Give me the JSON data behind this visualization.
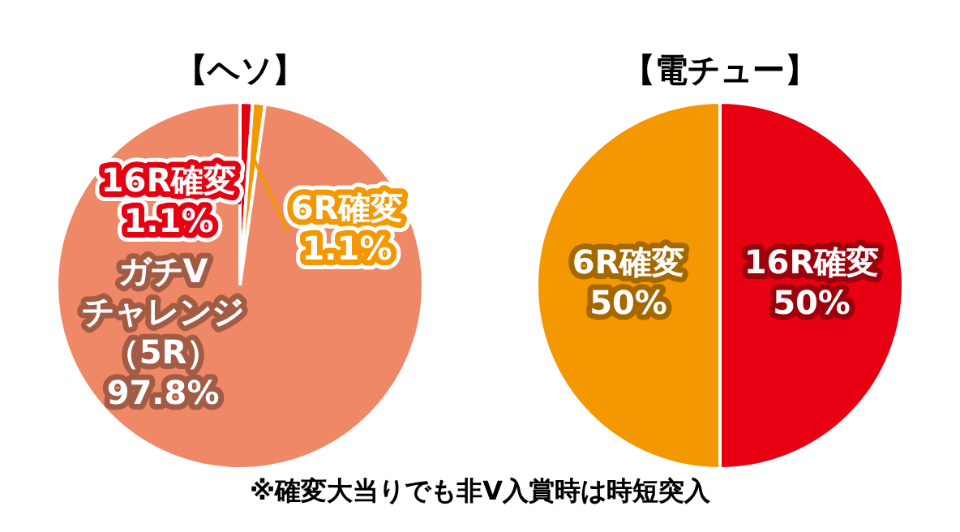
{
  "chart_data": [
    {
      "type": "pie",
      "title": "【ヘソ】",
      "categories": [
        "16R確変",
        "6R確変",
        "ガチVチャレンジ（5R）"
      ],
      "values": [
        1.1,
        1.1,
        97.8
      ],
      "colors": [
        "#e60012",
        "#f39800",
        "#ee8866"
      ],
      "value_labels": [
        "1.1%",
        "1.1%",
        "97.8%"
      ],
      "annotations": [
        "※確変大当りでも非V入賞時は時短突入"
      ]
    },
    {
      "type": "pie",
      "title": "【電チュー】",
      "categories": [
        "16R確変",
        "6R確変"
      ],
      "values": [
        50,
        50
      ],
      "colors": [
        "#e60012",
        "#f39800"
      ],
      "value_labels": [
        "50%",
        "50%"
      ]
    }
  ]
}
